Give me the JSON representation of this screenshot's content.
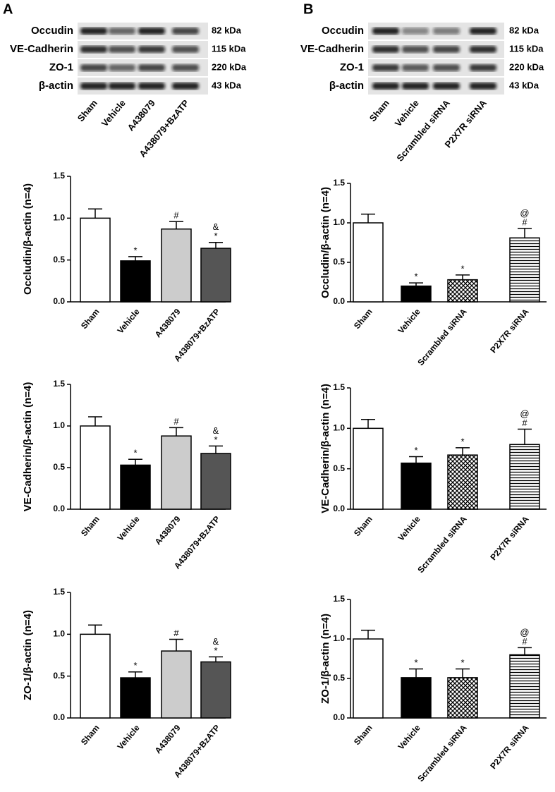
{
  "panels": [
    {
      "letter": "A",
      "rows": [
        "Occudin",
        "VE-Cadherin",
        "ZO-1",
        "β-actin"
      ],
      "sizes": [
        "82 kDa",
        "115 kDa",
        "220 kDa",
        "43 kDa"
      ],
      "lanes": [
        "Sham",
        "Vehicle",
        "A438079",
        "A438079+BzATP"
      ]
    },
    {
      "letter": "B",
      "rows": [
        "Occudin",
        "VE-Cadherin",
        "ZO-1",
        "β-actin"
      ],
      "sizes": [
        "82 kDa",
        "115 kDa",
        "220 kDa",
        "43 kDa"
      ],
      "lanes": [
        "Sham",
        "Vehicle",
        "Scrambled siRNA",
        "P2X7R siRNA"
      ]
    }
  ],
  "chart_data": [
    {
      "type": "bar",
      "ylabel": "Occludin/β-actin (n=4)",
      "categories": [
        "Sham",
        "Vehicle",
        "A438079",
        "A438079+BzATP"
      ],
      "values": [
        1.0,
        0.49,
        0.87,
        0.64
      ],
      "errors": [
        0.11,
        0.05,
        0.09,
        0.07
      ],
      "annotations": [
        [],
        [
          "*"
        ],
        [
          "#"
        ],
        [
          "&",
          "*"
        ]
      ],
      "fills": [
        "#ffffff",
        "#000000",
        "#cccccc",
        "#555555"
      ],
      "ylim": [
        0,
        1.5
      ],
      "yticks": [
        {
          "value": 0,
          "label": "0.0"
        },
        {
          "value": 0.5,
          "label": "0.5"
        },
        {
          "value": 1,
          "label": "1.0"
        },
        {
          "value": 1.5,
          "label": "1.5"
        }
      ]
    },
    {
      "type": "bar",
      "ylabel": "VE-Cadherin/β-actin (n=4)",
      "categories": [
        "Sham",
        "Vehicle",
        "A438079",
        "A438079+BzATP"
      ],
      "values": [
        1.0,
        0.53,
        0.88,
        0.67
      ],
      "errors": [
        0.11,
        0.07,
        0.1,
        0.09
      ],
      "annotations": [
        [],
        [
          "*"
        ],
        [
          "#"
        ],
        [
          "&",
          "*"
        ]
      ],
      "fills": [
        "#ffffff",
        "#000000",
        "#cccccc",
        "#555555"
      ],
      "ylim": [
        0,
        1.5
      ],
      "yticks": [
        {
          "value": 0,
          "label": "0.0"
        },
        {
          "value": 0.5,
          "label": "0.5"
        },
        {
          "value": 1,
          "label": "1.0"
        },
        {
          "value": 1.5,
          "label": "1.5"
        }
      ]
    },
    {
      "type": "bar",
      "ylabel": "ZO-1/β-actin (n=4)",
      "categories": [
        "Sham",
        "Vehicle",
        "A438079",
        "A438079+BzATP"
      ],
      "values": [
        1.0,
        0.48,
        0.8,
        0.67
      ],
      "errors": [
        0.11,
        0.07,
        0.14,
        0.06
      ],
      "annotations": [
        [],
        [
          "*"
        ],
        [
          "#"
        ],
        [
          "&",
          "*"
        ]
      ],
      "fills": [
        "#ffffff",
        "#000000",
        "#cccccc",
        "#555555"
      ],
      "ylim": [
        0,
        1.5
      ],
      "yticks": [
        {
          "value": 0,
          "label": "0.0"
        },
        {
          "value": 0.5,
          "label": "0.5"
        },
        {
          "value": 1,
          "label": "1.0"
        },
        {
          "value": 1.5,
          "label": "1.5"
        }
      ]
    },
    {
      "type": "bar",
      "ylabel": "Occludin/β-actin (n=4)",
      "categories": [
        "Sham",
        "Vehicle",
        "Scrambled siRNA",
        "P2X7R siRNA"
      ],
      "values": [
        1.0,
        0.2,
        0.28,
        0.81
      ],
      "errors": [
        0.11,
        0.04,
        0.06,
        0.12
      ],
      "annotations": [
        [],
        [
          "*"
        ],
        [
          "*"
        ],
        [
          "@",
          "#"
        ]
      ],
      "fills": [
        "#ffffff",
        "#000000",
        "crosshatch",
        "hstripes"
      ],
      "ylim": [
        0,
        1.5
      ],
      "yticks": [
        {
          "value": 0,
          "label": "0.0"
        },
        {
          "value": 0.5,
          "label": "0.5"
        },
        {
          "value": 1,
          "label": "1.0"
        },
        {
          "value": 1.5,
          "label": "1.5"
        }
      ]
    },
    {
      "type": "bar",
      "ylabel": "VE-Cadherin/β-actin (n=4)",
      "categories": [
        "Sham",
        "Vehicle",
        "Scrambled siRNA",
        "P2X7R siRNA"
      ],
      "values": [
        1.0,
        0.57,
        0.67,
        0.8
      ],
      "errors": [
        0.11,
        0.08,
        0.09,
        0.19
      ],
      "annotations": [
        [],
        [
          "*"
        ],
        [
          "*"
        ],
        [
          "@",
          "#"
        ]
      ],
      "fills": [
        "#ffffff",
        "#000000",
        "crosshatch",
        "hstripes"
      ],
      "ylim": [
        0,
        1.5
      ],
      "yticks": [
        {
          "value": 0,
          "label": "0.0"
        },
        {
          "value": 0.5,
          "label": "0.5"
        },
        {
          "value": 1,
          "label": "1.0"
        },
        {
          "value": 1.5,
          "label": "1.5"
        }
      ]
    },
    {
      "type": "bar",
      "ylabel": "ZO-1/β-actin (n=4)",
      "categories": [
        "Sham",
        "Vehicle",
        "Scrambled siRNA",
        "P2X7R siRNA"
      ],
      "values": [
        1.0,
        0.51,
        0.51,
        0.8
      ],
      "errors": [
        0.11,
        0.11,
        0.11,
        0.09
      ],
      "annotations": [
        [],
        [
          "*"
        ],
        [
          "*"
        ],
        [
          "@",
          "#"
        ]
      ],
      "fills": [
        "#ffffff",
        "#000000",
        "crosshatch",
        "hstripes"
      ],
      "ylim": [
        0,
        1.5
      ],
      "yticks": [
        {
          "value": 0,
          "label": "0.0"
        },
        {
          "value": 0.5,
          "label": "0.5"
        },
        {
          "value": 1,
          "label": "1.0"
        },
        {
          "value": 1.5,
          "label": "1.5"
        }
      ]
    }
  ]
}
